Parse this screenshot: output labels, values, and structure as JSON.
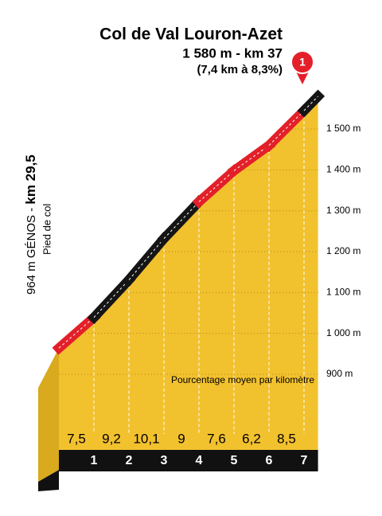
{
  "chart_data": {
    "type": "climb-profile",
    "title": "Col de Val Louron-Azet",
    "subtitle": "1 580 m - km 37",
    "note": "(7,4 km à 8,3%)",
    "marker": "1",
    "start_label": "964 m GÉNOS -",
    "start_km": "km 29,5",
    "start_note": "Pied de col",
    "annotation": "Pourcentage moyen par kilomètre",
    "categories": [
      "1",
      "2",
      "3",
      "4",
      "5",
      "6",
      "7"
    ],
    "values": [
      7.5,
      9.2,
      10.1,
      9,
      7.6,
      6.2,
      8.5
    ],
    "value_labels": [
      "7,5",
      "9,2",
      "10,1",
      "9",
      "7,6",
      "6,2",
      "8,5"
    ],
    "profile": {
      "km": [
        0,
        1,
        2,
        3,
        4,
        5,
        6,
        7,
        7.4
      ],
      "altitudes": [
        964,
        1039,
        1131,
        1232,
        1322,
        1398,
        1460,
        1545,
        1580
      ],
      "colors": [
        "#e3202a",
        "#151515",
        "#151515",
        "#151515",
        "#e3202a",
        "#e3202a",
        "#e3202a",
        "#151515"
      ]
    },
    "ylim": [
      900,
      1580
    ],
    "yticks": [
      {
        "value": 900,
        "label": "900 m"
      },
      {
        "value": 1000,
        "label": "1 000 m"
      },
      {
        "value": 1100,
        "label": "1 100 m"
      },
      {
        "value": 1200,
        "label": "1 200 m"
      },
      {
        "value": 1300,
        "label": "1 300 m"
      },
      {
        "value": 1400,
        "label": "1 400 m"
      },
      {
        "value": 1500,
        "label": "1 500 m"
      }
    ],
    "fill_color": "#f2c12e"
  }
}
